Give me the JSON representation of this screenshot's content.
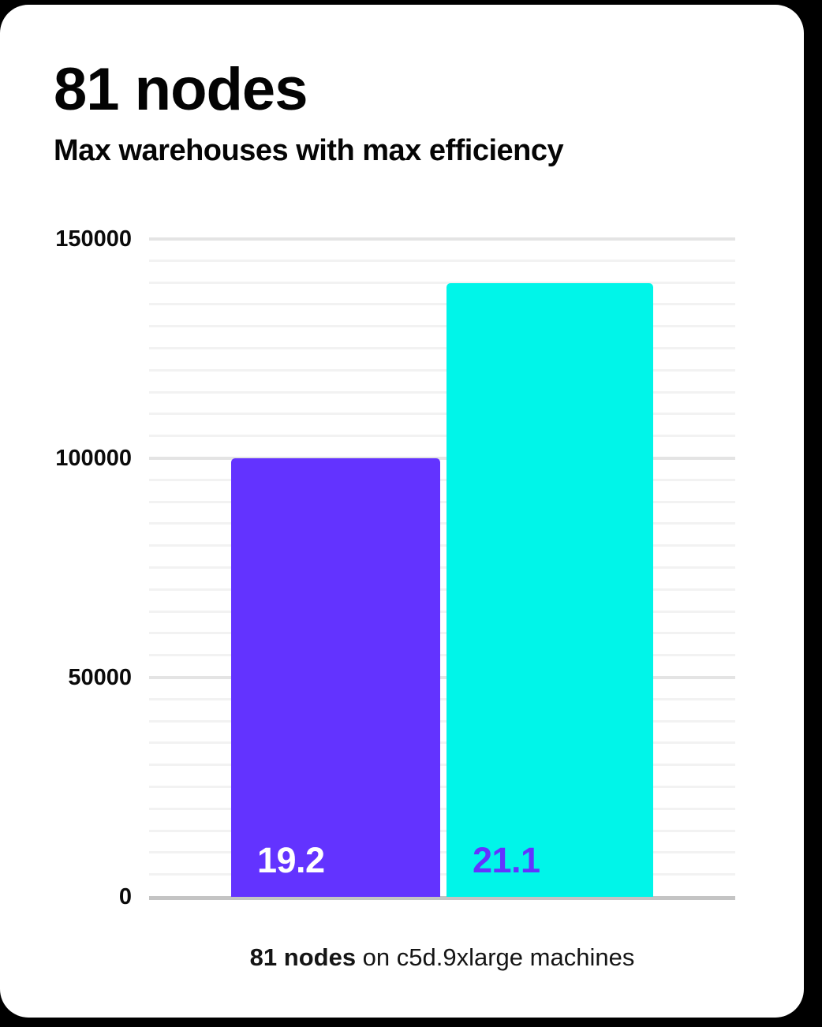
{
  "page": {
    "background_color": "#000000",
    "card_color": "#ffffff"
  },
  "header": {
    "title": "81 nodes",
    "subtitle": "Max warehouses with max efficiency"
  },
  "caption": {
    "bold": "81 nodes",
    "rest": " on c5d.9xlarge machines"
  },
  "chart_data": {
    "type": "bar",
    "title": "81 nodes",
    "subtitle": "Max warehouses with max efficiency",
    "categories": [
      "19.2",
      "21.1"
    ],
    "series": [
      {
        "name": "Max warehouses with max efficiency",
        "values": [
          100000,
          140000
        ]
      }
    ],
    "bar_labels": [
      "19.2",
      "21.1"
    ],
    "bar_colors": [
      "#6333ff",
      "#00f5e9"
    ],
    "bar_label_colors": [
      "#ffffff",
      "#6333ff"
    ],
    "xlabel": "",
    "ylabel": "",
    "ylim": [
      0,
      150000
    ],
    "yticks": [
      0,
      50000,
      100000,
      150000
    ],
    "ytick_labels": [
      "0",
      "50000",
      "100000",
      "150000"
    ],
    "minor_tick_interval": 5000,
    "grid": true,
    "legend_position": "none",
    "caption": "81 nodes on c5d.9xlarge machines",
    "grid_minor_color": "#f2f2f2",
    "grid_major_color": "#e4e4e4",
    "axis_line_color": "#c4c4c4"
  }
}
